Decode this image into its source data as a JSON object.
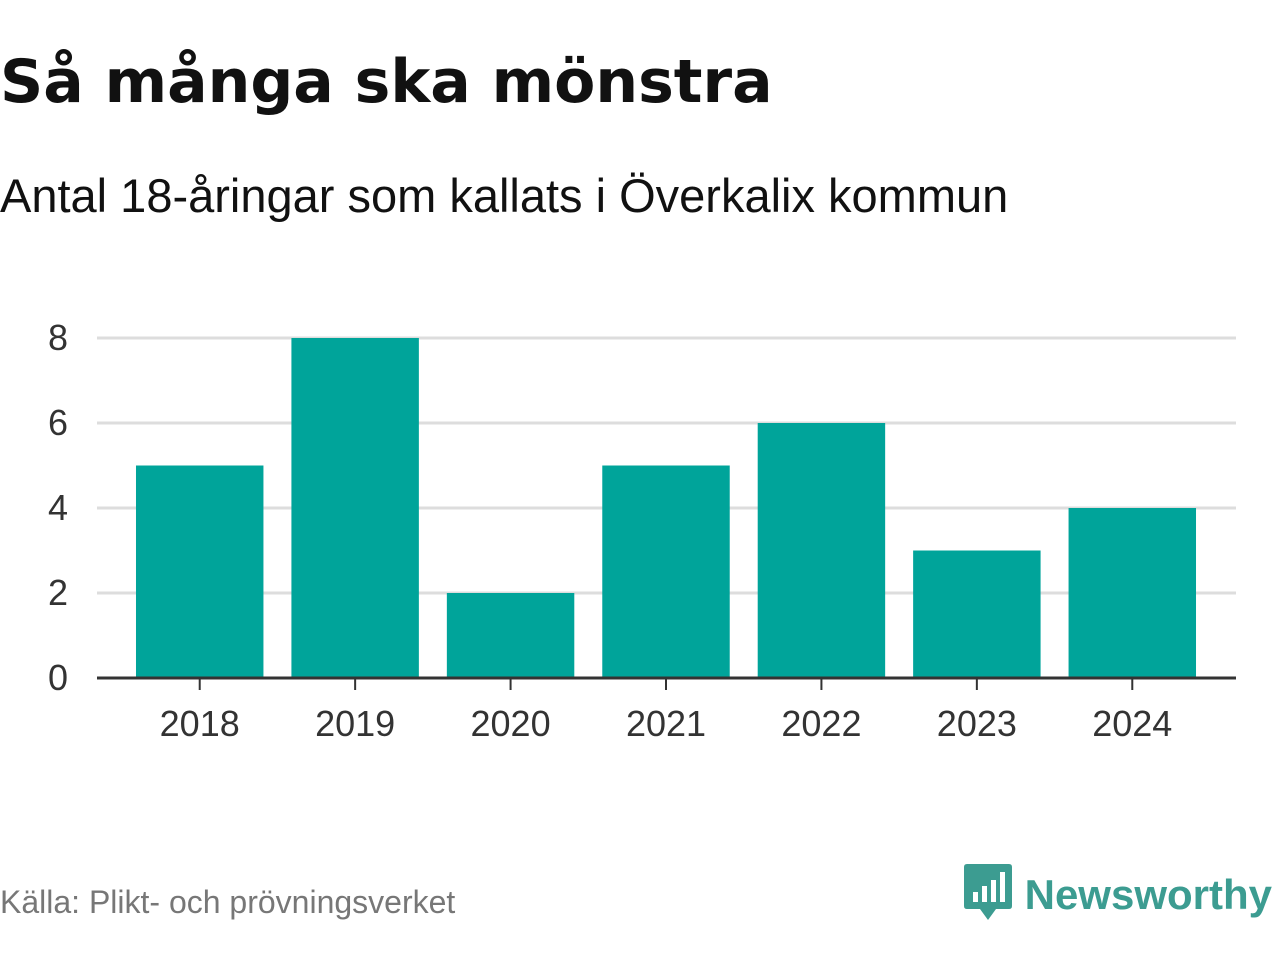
{
  "title": "Så många ska mönstra",
  "subtitle": "Antal 18-åringar som kallats i Överkalix kommun",
  "source": "Källa: Plikt- och prövningsverket",
  "brand": {
    "name": "Newsworthy",
    "icon": "newsworthy-logo-icon",
    "color": "#3c9c91"
  },
  "colors": {
    "bar": "#00a49a",
    "grid": "#dddddd",
    "axis": "#333333"
  },
  "chart_data": {
    "type": "bar",
    "categories": [
      "2018",
      "2019",
      "2020",
      "2021",
      "2022",
      "2023",
      "2024"
    ],
    "values": [
      5,
      8,
      2,
      5,
      6,
      3,
      4
    ],
    "title": "Så många ska mönstra",
    "subtitle": "Antal 18-åringar som kallats i Överkalix kommun",
    "xlabel": "",
    "ylabel": "",
    "ylim": [
      0,
      8
    ],
    "yticks": [
      0,
      2,
      4,
      6,
      8
    ],
    "grid": true,
    "legend": "none"
  }
}
